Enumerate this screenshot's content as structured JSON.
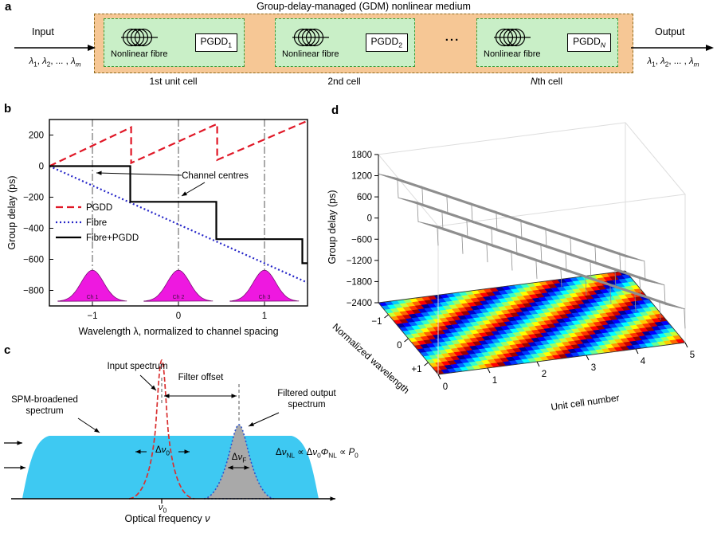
{
  "panels": {
    "a": "a",
    "b": "b",
    "c": "c",
    "d": "d"
  },
  "panel_a": {
    "title": "Group-delay-managed (GDM) nonlinear medium",
    "input_label": "Input",
    "output_label": "Output",
    "input_wavelengths_html": "<i>&lambda;</i><sub>1</sub>, <i>&lambda;</i><sub>2</sub>, ... , <i>&lambda;</i><sub><i>m</i></sub>",
    "output_wavelengths_html": "<i>&lambda;</i><sub>1</sub>, <i>&lambda;</i><sub>2</sub>, ... , <i>&lambda;</i><sub><i>m</i></sub>",
    "ellipsis": "...",
    "cells": [
      {
        "fibre_label": "Nonlinear fibre",
        "pgdd_base": "PGDD",
        "pgdd_sub": "1",
        "caption_html": "1st unit cell"
      },
      {
        "fibre_label": "Nonlinear fibre",
        "pgdd_base": "PGDD",
        "pgdd_sub": "2",
        "caption_html": "2nd cell"
      },
      {
        "fibre_label": "Nonlinear fibre",
        "pgdd_base": "PGDD",
        "pgdd_sub": "<i>N</i>",
        "caption_html": "<i>N</i>th cell"
      }
    ]
  },
  "chart_data": [
    {
      "id": "panel-b",
      "type": "line",
      "xlabel": "Wavelength λ, normalized to channel spacing",
      "ylabel": "Group delay (ps)",
      "xlim": [
        -1.5,
        1.5
      ],
      "ylim": [
        -900,
        300
      ],
      "xticks": [
        -1,
        0,
        1
      ],
      "yticks": [
        200,
        0,
        -200,
        -400,
        -600,
        -800
      ],
      "legend_position": "left-middle",
      "series": [
        {
          "name": "PGDD",
          "color": "#e01726",
          "style": "dashed",
          "points": [
            [
              -1.5,
              0
            ],
            [
              -0.55,
              250
            ],
            [
              -0.55,
              20
            ],
            [
              0.45,
              272
            ],
            [
              0.45,
              40
            ],
            [
              1.5,
              292
            ]
          ]
        },
        {
          "name": "Fibre",
          "color": "#2424c8",
          "style": "dotted",
          "points": [
            [
              -1.5,
              0
            ],
            [
              1.5,
              -750
            ]
          ]
        },
        {
          "name": "Fibre+PGDD",
          "color": "#000000",
          "style": "solid",
          "points": [
            [
              -1.5,
              0
            ],
            [
              -0.56,
              0
            ],
            [
              -0.56,
              -230
            ],
            [
              0.44,
              -230
            ],
            [
              0.44,
              -470
            ],
            [
              1.44,
              -470
            ],
            [
              1.44,
              -625
            ],
            [
              1.5,
              -625
            ]
          ]
        }
      ],
      "channels": {
        "centers": [
          -1,
          0,
          1
        ],
        "labels": [
          "Ch 1",
          "Ch 2",
          "Ch 3"
        ],
        "baseline": -870,
        "peak": -670,
        "sigma": 0.13,
        "color": "#ee18e0"
      },
      "annotation": {
        "text": "Channel centres"
      }
    },
    {
      "id": "panel-d",
      "type": "surface3d",
      "zlabel": "Group delay (ps)",
      "ylabel": "Normalized wavelength",
      "xlabel": "Unit cell number",
      "zticks": [
        1800,
        1200,
        600,
        0,
        -600,
        -1200,
        -1800,
        -2400
      ],
      "uticks": [
        0,
        1,
        2,
        3,
        4,
        5
      ],
      "wticks": [
        "-1",
        "0",
        "+1"
      ],
      "zlim": [
        -2400,
        1800
      ],
      "u_range": [
        0,
        5
      ],
      "w_range": [
        -1.5,
        1.5
      ],
      "surface": {
        "base": 1250,
        "per_cell": -650,
        "saw_amplitude": 550,
        "saw_period": 1,
        "description": "z = base + per_cell*u + saw_amplitude*frac(wavelength+1.5)"
      },
      "heatmap": {
        "plane_z": -2400,
        "stripe_slope": 0.8,
        "colormap": "jet"
      }
    }
  ],
  "panel_c": {
    "spm_label": "SPM-broadened spectrum",
    "input_label": "Input spectrum",
    "filter_offset_label": "Filter offset",
    "filtered_label": "Filtered output spectrum",
    "dnu0_html": "&Delta;<i>&nu;</i><sub>0</sub>",
    "dnuF_html": "&Delta;<i>&nu;</i><sub>F</sub>",
    "formula_html": "&Delta;<i>&nu;</i><sub>NL</sub> &prop; &Delta;<i>&nu;</i><sub>0</sub><i>&Phi;</i><sub>NL</sub> &prop; <i>P</i><sub>0</sub>",
    "freq_axis_html": "Optical frequency <i>&nu;</i>",
    "nu0_html": "<i>&nu;</i><sub>0</sub>"
  }
}
